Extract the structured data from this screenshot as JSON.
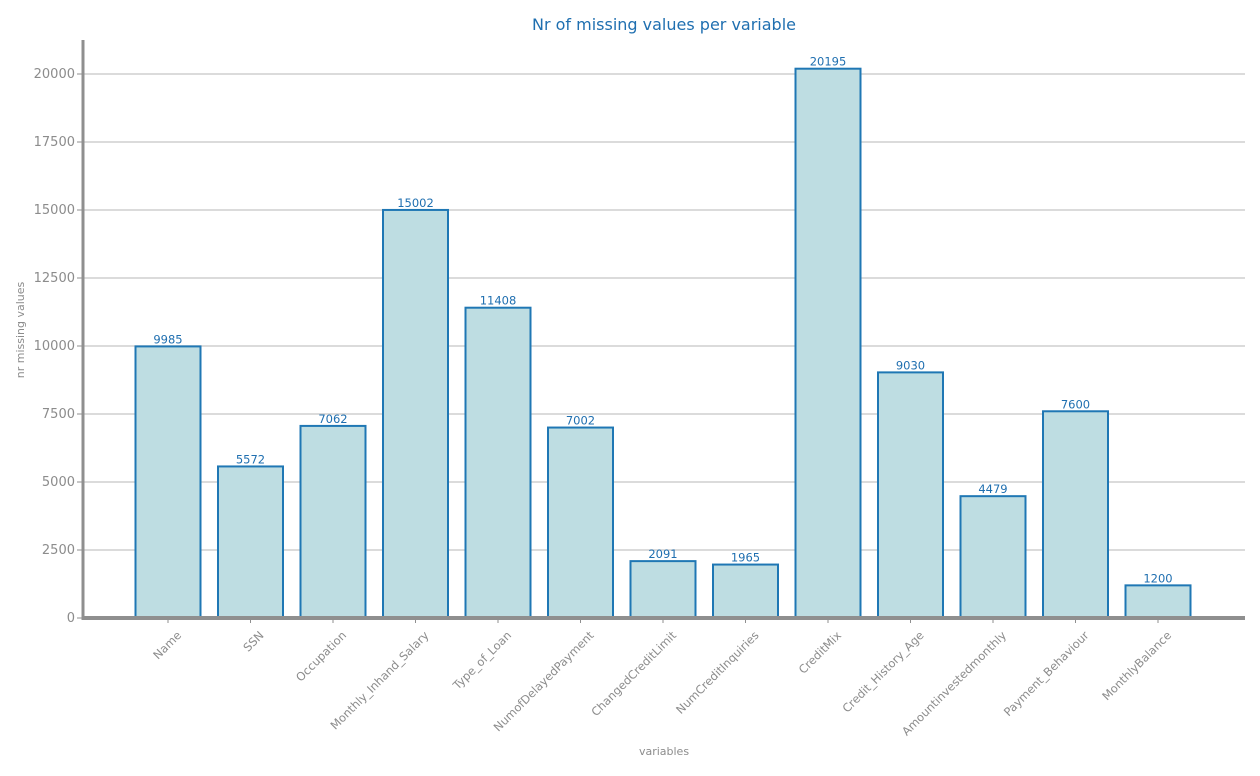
{
  "chart_data": {
    "type": "bar",
    "title": "Nr of missing values per variable",
    "xlabel": "variables",
    "ylabel": "nr missing values",
    "categories": [
      "Name",
      "SSN",
      "Occupation",
      "Monthly_Inhand_Salary",
      "Type_of_Loan",
      "NumofDelayedPayment",
      "ChangedCreditLimit",
      "NumCreditInquiries",
      "CreditMix",
      "Credit_History_Age",
      "Amountinvestedmonthly",
      "Payment_Behaviour",
      "MonthlyBalance"
    ],
    "values": [
      9985,
      5572,
      7062,
      15002,
      11408,
      7002,
      2091,
      1965,
      20195,
      9030,
      4479,
      7600,
      1200
    ],
    "data_labels": [
      "9985",
      "5572",
      "7062",
      "15002",
      "11408",
      "7002",
      "2091",
      "1965",
      "20195",
      "9030",
      "4479",
      "7600",
      "1200"
    ],
    "ylim": [
      0,
      21250
    ],
    "yticks": [
      0,
      2500,
      5000,
      7500,
      10000,
      12500,
      15000,
      17500,
      20000
    ],
    "ytick_labels": [
      "0",
      "2500",
      "5000",
      "7500",
      "10000",
      "12500",
      "15000",
      "17500",
      "20000"
    ],
    "grid": "horizontal",
    "colors": {
      "bar_fill": "#bedde2",
      "bar_edge": "#1f77b4",
      "title": "#1f6fb0",
      "data_label": "#1f6fb0",
      "axis_text": "#8c8c8c",
      "axis_line": "#8f8f8f",
      "grid": "#cfcfcf"
    }
  }
}
